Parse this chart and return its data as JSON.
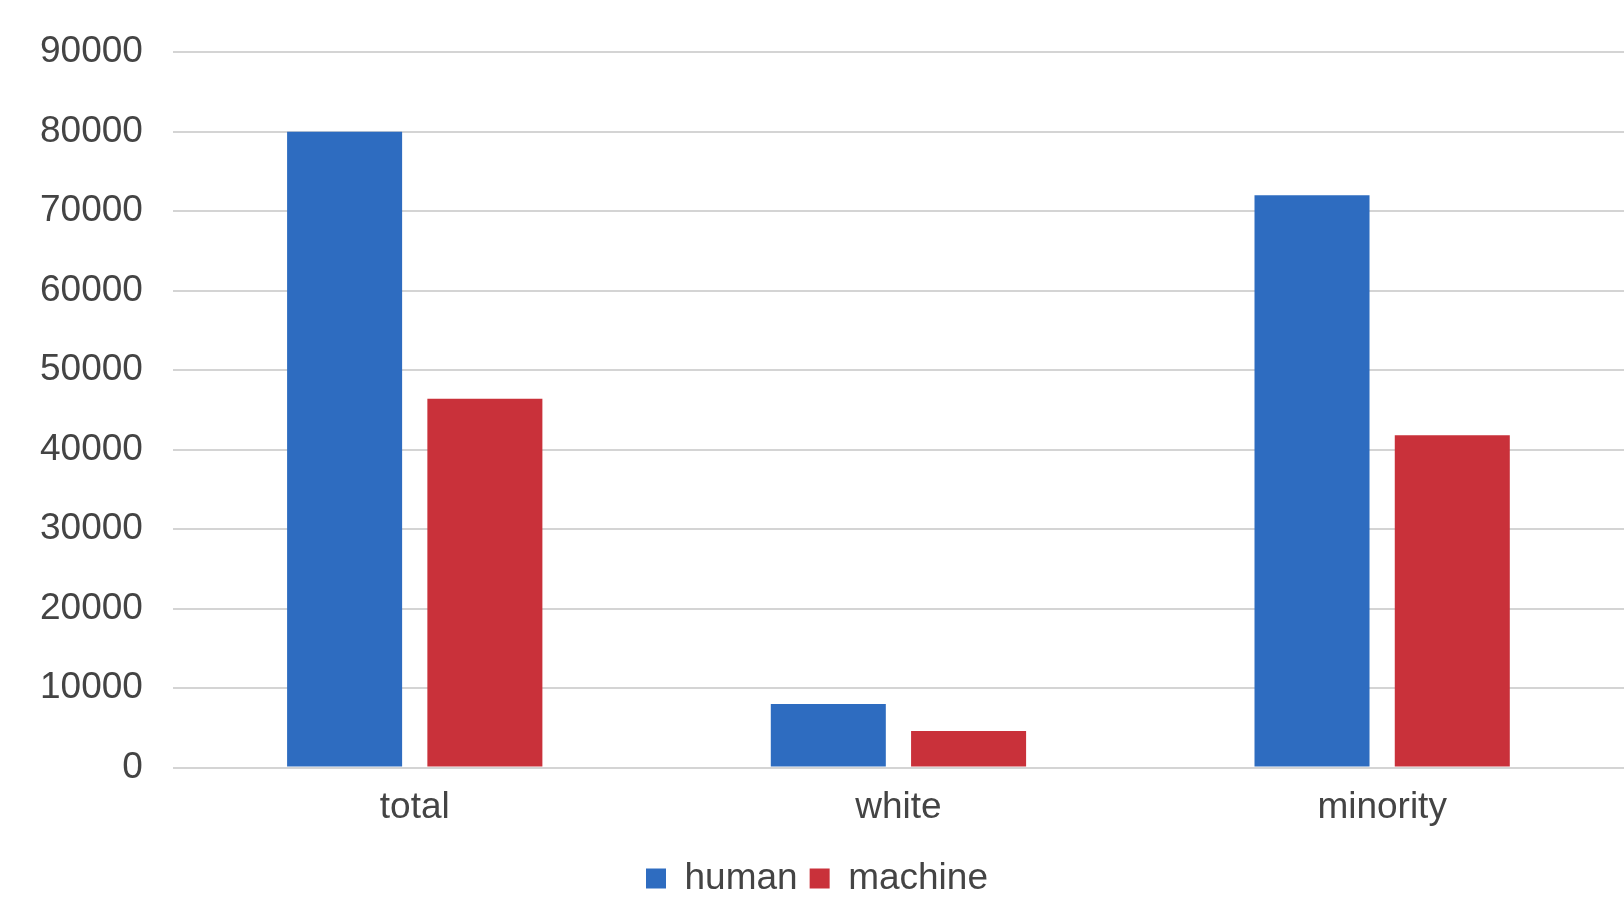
{
  "chart_data": {
    "type": "bar",
    "categories": [
      "total",
      "white",
      "minority"
    ],
    "series": [
      {
        "name": "human",
        "color": "#2e6cc0",
        "values": [
          80000,
          8000,
          72000
        ]
      },
      {
        "name": "machine",
        "color": "#c9313a",
        "values": [
          46400,
          4600,
          41800
        ]
      }
    ],
    "ylim": [
      0,
      90000
    ],
    "yticks": [
      0,
      10000,
      20000,
      30000,
      40000,
      50000,
      60000,
      70000,
      80000,
      90000
    ],
    "grid": "y",
    "legend": "bottom"
  }
}
